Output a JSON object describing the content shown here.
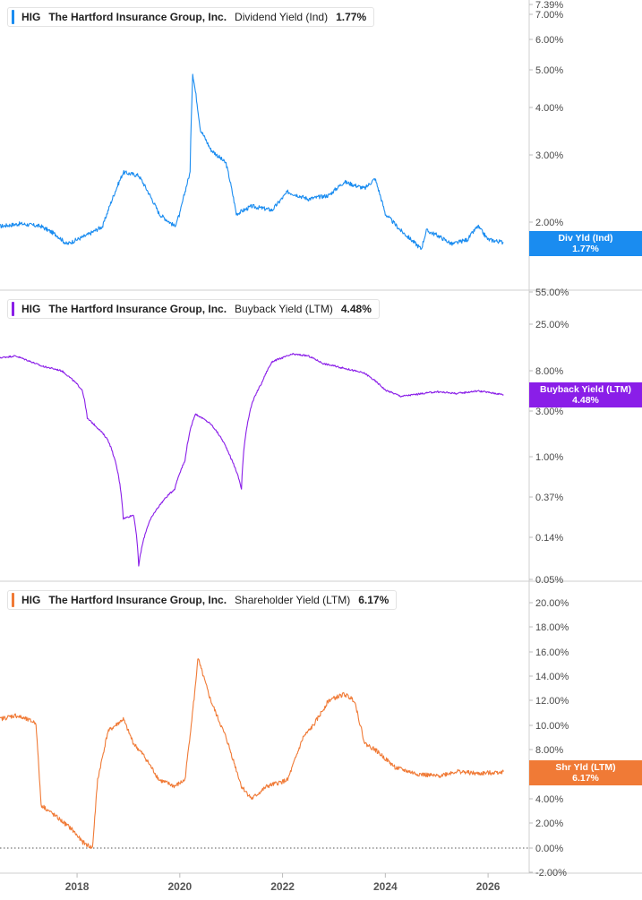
{
  "ticker": "HIG",
  "company": "The Hartford Insurance Group, Inc.",
  "panels": [
    {
      "metric": "Dividend Yield (Ind)",
      "value": "1.77%",
      "color": "#1a8cf0",
      "tag_label": "Div Yld (Ind)",
      "tag_value": "1.77%",
      "ticks": [
        "7.39%",
        "7.00%",
        "6.00%",
        "5.00%",
        "4.00%",
        "3.00%",
        "2.00%"
      ]
    },
    {
      "metric": "Buyback Yield (LTM)",
      "value": "4.48%",
      "color": "#8a1ee8",
      "tag_label": "Buyback Yield (LTM)",
      "tag_value": "4.48%",
      "ticks": [
        "55.00%",
        "25.00%",
        "8.00%",
        "3.00%",
        "1.00%",
        "0.37%",
        "0.14%",
        "0.05%"
      ]
    },
    {
      "metric": "Shareholder Yield (LTM)",
      "value": "6.17%",
      "color": "#f07a36",
      "tag_label": "Shr Yld (LTM)",
      "tag_value": "6.17%",
      "ticks": [
        "20.00%",
        "18.00%",
        "16.00%",
        "14.00%",
        "12.00%",
        "10.00%",
        "8.00%",
        "6.00%",
        "4.00%",
        "2.00%",
        "0.00%",
        "-2.00%"
      ]
    }
  ],
  "x_ticks": [
    "2018",
    "2020",
    "2022",
    "2024",
    "2026"
  ],
  "chart_data": [
    {
      "type": "line",
      "series": [
        {
          "name": "Dividend Yield (Ind)",
          "x": [
            2016.5,
            2016.9,
            2017.3,
            2017.6,
            2017.8,
            2018.2,
            2018.5,
            2018.9,
            2019.2,
            2019.6,
            2019.9,
            2020.0,
            2020.2,
            2020.25,
            2020.4,
            2020.6,
            2020.9,
            2021.1,
            2021.4,
            2021.8,
            2022.1,
            2022.5,
            2022.9,
            2023.2,
            2023.6,
            2023.8,
            2024.0,
            2024.3,
            2024.5,
            2024.7,
            2024.8,
            2025.0,
            2025.3,
            2025.6,
            2025.8,
            2026.0,
            2026.3
          ],
          "y": [
            1.95,
            1.98,
            1.95,
            1.85,
            1.75,
            1.85,
            1.95,
            2.7,
            2.65,
            2.1,
            1.95,
            2.1,
            2.7,
            4.9,
            3.5,
            3.1,
            2.85,
            2.1,
            2.2,
            2.15,
            2.4,
            2.3,
            2.35,
            2.55,
            2.45,
            2.6,
            2.1,
            1.9,
            1.8,
            1.7,
            1.9,
            1.85,
            1.75,
            1.8,
            1.95,
            1.8,
            1.77
          ]
        }
      ],
      "ylim": [
        1.6,
        7.39
      ],
      "scale": "log"
    },
    {
      "type": "line",
      "series": [
        {
          "name": "Buyback Yield (LTM)",
          "x": [
            2016.5,
            2016.8,
            2017.3,
            2017.7,
            2018.1,
            2018.2,
            2018.6,
            2018.9,
            2019.1,
            2019.2,
            2019.4,
            2019.6,
            2019.9,
            2020.1,
            2020.3,
            2020.6,
            2021.0,
            2021.2,
            2021.4,
            2021.6,
            2021.8,
            2022.2,
            2022.5,
            2022.8,
            2023.2,
            2023.6,
            2024.0,
            2024.3,
            2024.6,
            2025.0,
            2025.4,
            2025.8,
            2026.3
          ],
          "y": [
            11,
            11.5,
            9,
            8,
            5,
            2.5,
            1.5,
            0.22,
            0.24,
            0.07,
            0.2,
            0.3,
            0.45,
            0.9,
            2.8,
            2.2,
            0.95,
            0.45,
            3.5,
            6,
            10,
            12,
            11.5,
            9.5,
            8.5,
            7.5,
            5,
            4.3,
            4.5,
            4.8,
            4.6,
            4.9,
            4.48
          ]
        }
      ],
      "ylim": [
        0.045,
        60
      ],
      "scale": "log"
    },
    {
      "type": "line",
      "series": [
        {
          "name": "Shareholder Yield (LTM)",
          "x": [
            2016.5,
            2016.8,
            2017.2,
            2017.3,
            2017.6,
            2017.9,
            2018.1,
            2018.3,
            2018.4,
            2018.6,
            2018.9,
            2019.1,
            2019.3,
            2019.6,
            2019.9,
            2020.1,
            2020.3,
            2020.35,
            2020.6,
            2020.9,
            2021.2,
            2021.4,
            2021.7,
            2022.1,
            2022.4,
            2022.6,
            2022.9,
            2023.2,
            2023.4,
            2023.6,
            2023.8,
            2024.2,
            2024.6,
            2025.0,
            2025.4,
            2025.8,
            2026.3
          ],
          "y": [
            10.5,
            10.8,
            10.2,
            3.5,
            2.5,
            1.5,
            0.5,
            0,
            5.5,
            9.5,
            10.5,
            8.5,
            7.5,
            5.5,
            5,
            5.5,
            13,
            15.5,
            12,
            9,
            5,
            4,
            5,
            5.5,
            9,
            10,
            12,
            12.5,
            12,
            8.5,
            8,
            6.5,
            6,
            5.8,
            6.2,
            6,
            6.17
          ]
        }
      ],
      "ylim": [
        -2,
        21
      ]
    }
  ]
}
